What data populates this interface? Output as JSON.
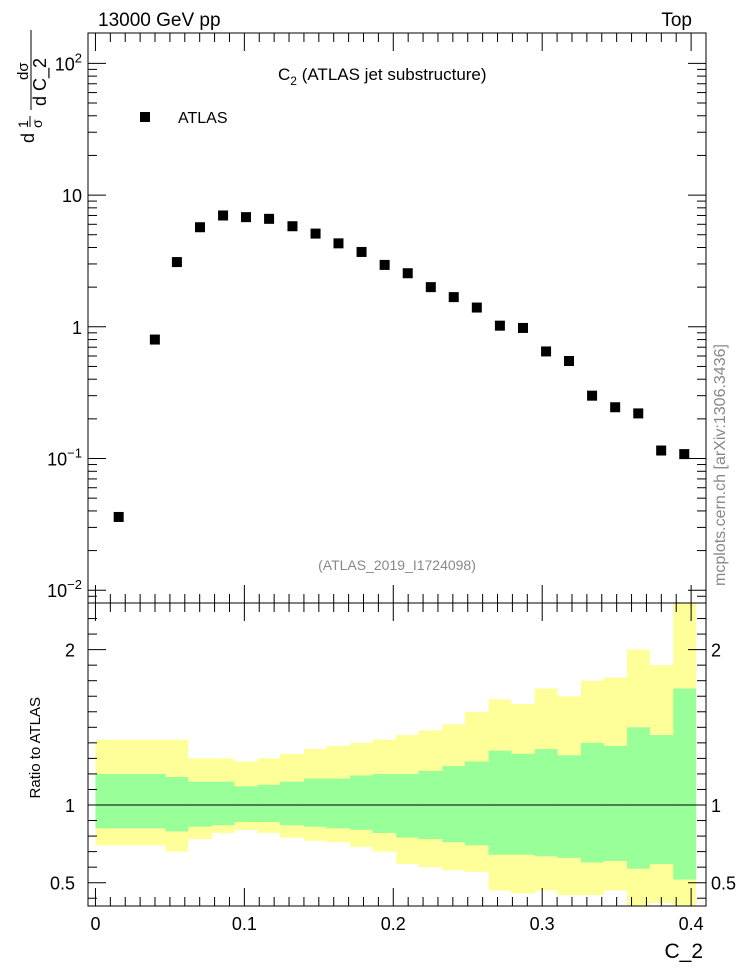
{
  "header": {
    "left": "13000 GeV pp",
    "right": "Top"
  },
  "side_text": "mcplots.cern.ch [arXiv:1306.3436]",
  "chart_data": [
    {
      "type": "scatter",
      "title": "C",
      "title_sub": "2",
      "title_rest": " (ATLAS jet substructure)",
      "analysis": "(ATLAS_2019_I1724098)",
      "ylabel_parts": {
        "d": "d",
        "one": "1",
        "sigma": "σ",
        "dsigma": "dσ",
        "dC": "d C_2"
      },
      "yscale": "log",
      "ylim": [
        0.008,
        170
      ],
      "xlim": [
        -0.005,
        0.41
      ],
      "yticks": [
        {
          "v": 0.01,
          "base": "10",
          "exp": "−2"
        },
        {
          "v": 0.1,
          "base": "10",
          "exp": "−1"
        },
        {
          "v": 1,
          "base": "1",
          "exp": ""
        },
        {
          "v": 10,
          "base": "10",
          "exp": ""
        },
        {
          "v": 100,
          "base": "10",
          "exp": "2"
        }
      ],
      "legend": {
        "label": "ATLAS",
        "placement": "top-left"
      },
      "series": [
        {
          "name": "ATLAS",
          "marker": "square",
          "color": "#000000",
          "x": [
            0.0156,
            0.0399,
            0.0547,
            0.0702,
            0.0857,
            0.1011,
            0.1166,
            0.1323,
            0.1478,
            0.1632,
            0.1787,
            0.1942,
            0.2097,
            0.2252,
            0.2406,
            0.2561,
            0.2716,
            0.2871,
            0.3026,
            0.318,
            0.3335,
            0.349,
            0.3645,
            0.3799,
            0.3954
          ],
          "y": [
            0.036,
            0.8,
            3.1,
            5.7,
            7.0,
            6.8,
            6.6,
            5.8,
            5.1,
            4.3,
            3.7,
            2.95,
            2.55,
            2.0,
            1.68,
            1.4,
            1.02,
            0.98,
            0.65,
            0.55,
            0.3,
            0.245,
            0.22,
            0.115,
            0.108
          ]
        }
      ]
    },
    {
      "type": "area",
      "ylabel": "Ratio to ATLAS",
      "xlabel": "C_2",
      "xlim": [
        -0.005,
        0.41
      ],
      "ylim": [
        0.35,
        2.3
      ],
      "yticks": [
        0.5,
        1,
        2
      ],
      "ytick_labels": [
        "0.5",
        "1",
        "2"
      ],
      "xticks": [
        0,
        0.1,
        0.2,
        0.3,
        0.4
      ],
      "xtick_labels": [
        "0",
        "0.1",
        "0.2",
        "0.3",
        "0.4"
      ],
      "reference_line": 1,
      "band_colors": {
        "inner": "#99ff99",
        "outer": "#ffff99"
      },
      "bins": [
        0,
        0.031,
        0.047,
        0.062,
        0.078,
        0.093,
        0.109,
        0.124,
        0.14,
        0.155,
        0.171,
        0.186,
        0.202,
        0.217,
        0.233,
        0.248,
        0.264,
        0.279,
        0.295,
        0.31,
        0.326,
        0.341,
        0.357,
        0.372,
        0.388,
        0.403
      ],
      "inner_upper": [
        1.2,
        1.2,
        1.18,
        1.15,
        1.15,
        1.12,
        1.13,
        1.15,
        1.17,
        1.17,
        1.19,
        1.2,
        1.2,
        1.22,
        1.25,
        1.28,
        1.35,
        1.33,
        1.36,
        1.32,
        1.4,
        1.38,
        1.5,
        1.45,
        1.75
      ],
      "inner_lower": [
        0.85,
        0.85,
        0.83,
        0.86,
        0.87,
        0.89,
        0.89,
        0.87,
        0.86,
        0.85,
        0.84,
        0.82,
        0.79,
        0.78,
        0.76,
        0.74,
        0.68,
        0.68,
        0.67,
        0.66,
        0.63,
        0.64,
        0.59,
        0.62,
        0.52
      ],
      "outer_upper": [
        1.42,
        1.42,
        1.42,
        1.3,
        1.3,
        1.28,
        1.3,
        1.33,
        1.36,
        1.38,
        1.4,
        1.42,
        1.45,
        1.48,
        1.52,
        1.6,
        1.68,
        1.65,
        1.75,
        1.7,
        1.8,
        1.82,
        2.0,
        1.9,
        2.4
      ],
      "outer_lower": [
        0.74,
        0.74,
        0.7,
        0.78,
        0.82,
        0.84,
        0.82,
        0.79,
        0.77,
        0.76,
        0.73,
        0.7,
        0.62,
        0.6,
        0.58,
        0.57,
        0.45,
        0.43,
        0.45,
        0.42,
        0.42,
        0.45,
        0.34,
        0.37,
        0.31
      ]
    }
  ]
}
